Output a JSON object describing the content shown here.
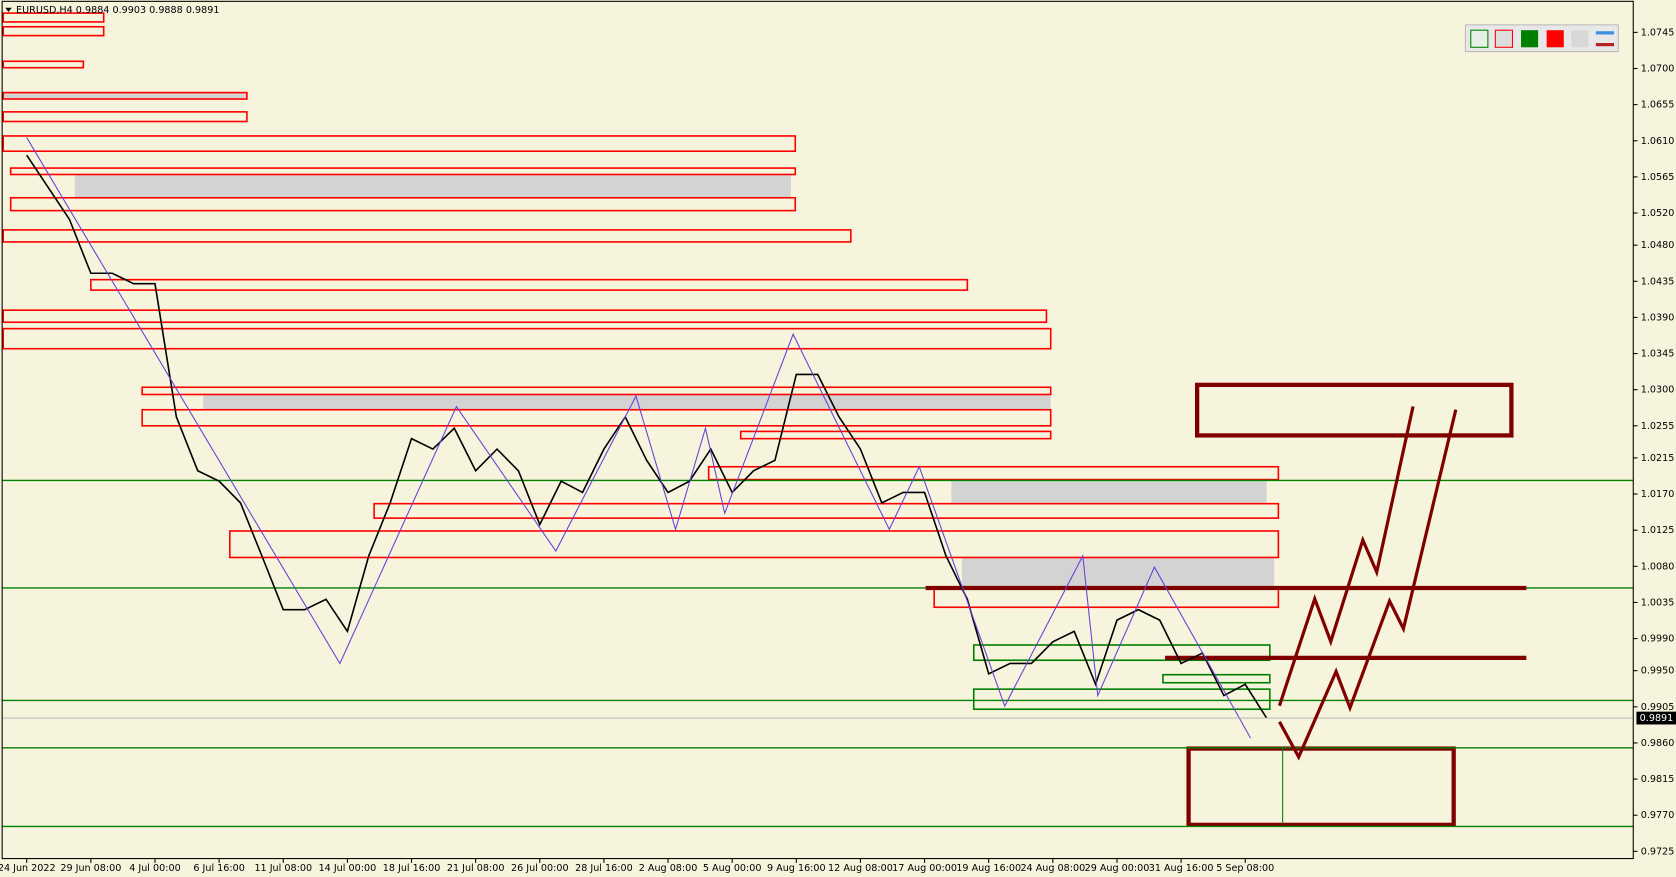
{
  "header": "EURUSD,H4  0.9884 0.9903 0.9888 0.9891",
  "chart_data": {
    "type": "line",
    "categories": [
      "24 Jun 2022",
      null,
      null,
      "29 Jun 08:00",
      null,
      null,
      "4 Jul 00:00",
      null,
      null,
      "6 Jul 16:00",
      null,
      null,
      "11 Jul 08:00",
      null,
      null,
      "14 Jul 00:00",
      null,
      null,
      "18 Jul 16:00",
      null,
      null,
      "21 Jul 08:00",
      null,
      null,
      "26 Jul 00:00",
      null,
      null,
      "28 Jul 16:00",
      null,
      null,
      "2 Aug 08:00",
      null,
      null,
      "5 Aug 00:00",
      null,
      null,
      "9 Aug 16:00",
      null,
      null,
      "12 Aug 08:00",
      null,
      null,
      "17 Aug 00:00",
      null,
      null,
      "19 Aug 16:00",
      null,
      null,
      "24 Aug 08:00",
      null,
      null,
      "29 Aug 00:00",
      null,
      null,
      "31 Aug 16:00",
      null,
      null,
      "5 Sep 08:00",
      null
    ],
    "values": [
      1.0592,
      1.0552,
      1.0512,
      1.0445,
      1.0445,
      1.0432,
      1.0432,
      1.0266,
      1.0199,
      1.0186,
      1.0159,
      1.0093,
      1.0026,
      1.0026,
      1.0039,
      0.9999,
      1.0093,
      1.0159,
      1.0239,
      1.0226,
      1.0252,
      1.0199,
      1.0226,
      1.0199,
      1.0132,
      1.0186,
      1.0172,
      1.0226,
      1.0266,
      1.0212,
      1.0172,
      1.0186,
      1.0226,
      1.0172,
      1.0199,
      1.0212,
      1.0319,
      1.0319,
      1.0266,
      1.0226,
      1.0159,
      1.0172,
      1.0172,
      1.0093,
      1.0039,
      0.9946,
      0.9959,
      0.9959,
      0.9986,
      0.9999,
      0.9933,
      1.0013,
      1.0026,
      1.0013,
      0.9959,
      0.9972,
      0.9919,
      0.9933,
      0.9891
    ],
    "color": "#000000",
    "zigzag": {
      "color": "#6a3fd8",
      "x": [
        0,
        14.65,
        20.1,
        24.75,
        28.5,
        30.35,
        31.75,
        32.65,
        35.85,
        40.35,
        41.75,
        45.75,
        49.4,
        50.1,
        52.75,
        57.25
      ],
      "values": [
        1.0614,
        0.9959,
        1.0279,
        1.0099,
        1.0292,
        1.0126,
        1.0252,
        1.0146,
        1.0369,
        1.0126,
        1.0204,
        0.9906,
        1.0093,
        0.9919,
        1.0079,
        0.9866
      ]
    },
    "ylim": [
      0.9716,
      1.0785
    ],
    "yticks": [
      {
        "value": 1.0745,
        "label": "1.0745"
      },
      {
        "value": 1.07,
        "label": "1.0700"
      },
      {
        "value": 1.0655,
        "label": "1.0655"
      },
      {
        "value": 1.061,
        "label": "1.0610"
      },
      {
        "value": 1.0565,
        "label": "1.0565"
      },
      {
        "value": 1.052,
        "label": "1.0520"
      },
      {
        "value": 1.048,
        "label": "1.0480"
      },
      {
        "value": 1.0435,
        "label": "1.0435"
      },
      {
        "value": 1.039,
        "label": "1.0390"
      },
      {
        "value": 1.0345,
        "label": "1.0345"
      },
      {
        "value": 1.03,
        "label": "1.0300"
      },
      {
        "value": 1.0255,
        "label": "1.0255"
      },
      {
        "value": 1.0215,
        "label": "1.0215"
      },
      {
        "value": 1.017,
        "label": "1.0170"
      },
      {
        "value": 1.0125,
        "label": "1.0125"
      },
      {
        "value": 1.008,
        "label": "1.0080"
      },
      {
        "value": 1.0035,
        "label": "1.0035"
      },
      {
        "value": 0.999,
        "label": "0.9990"
      },
      {
        "value": 0.995,
        "label": "0.9950"
      },
      {
        "value": 0.9905,
        "label": "0.9905"
      },
      {
        "value": 0.986,
        "label": "0.9860"
      },
      {
        "value": 0.9815,
        "label": "0.9815"
      },
      {
        "value": 0.977,
        "label": "0.9770"
      },
      {
        "value": 0.9725,
        "label": "0.9725"
      }
    ],
    "last_price": {
      "value": 0.9891,
      "label": "0.9891"
    },
    "zones": [
      {
        "low": 1.0662,
        "high": 1.067,
        "x": [
          -1.1,
          10.3
        ],
        "color": "#d3d3d3",
        "filled": true
      },
      {
        "low": 1.0539,
        "high": 1.0568,
        "x": [
          2.25,
          35.75
        ],
        "color": "#d3d3d3",
        "filled": true
      },
      {
        "low": 1.0275,
        "high": 1.0294,
        "x": [
          8.25,
          47.9
        ],
        "color": "#d3d3d3",
        "filled": true
      },
      {
        "low": 1.0158,
        "high": 1.0188,
        "x": [
          43.25,
          58
        ],
        "color": "#d3d3d3",
        "filled": true
      },
      {
        "low": 1.0053,
        "high": 1.0091,
        "x": [
          43.75,
          58.35
        ],
        "color": "#d3d3d3",
        "filled": true
      },
      {
        "low": 1.0758,
        "high": 1.0769,
        "x": [
          -1.1,
          3.6
        ],
        "color": "#ff0000"
      },
      {
        "low": 1.0741,
        "high": 1.0752,
        "x": [
          -1.1,
          3.6
        ],
        "color": "#ff0000"
      },
      {
        "low": 1.0701,
        "high": 1.0709,
        "x": [
          -1.1,
          2.65
        ],
        "color": "#ff0000"
      },
      {
        "low": 1.0662,
        "high": 1.067,
        "x": [
          -1.1,
          10.3
        ],
        "color": "#ff0000"
      },
      {
        "low": 1.0634,
        "high": 1.0646,
        "x": [
          -1.1,
          10.3
        ],
        "color": "#ff0000"
      },
      {
        "low": 1.0597,
        "high": 1.0616,
        "x": [
          -1.1,
          35.95
        ],
        "color": "#ff0000"
      },
      {
        "low": 1.0568,
        "high": 1.0576,
        "x": [
          -0.75,
          35.95
        ],
        "color": "#ff0000"
      },
      {
        "low": 1.0523,
        "high": 1.0539,
        "x": [
          -0.75,
          35.95
        ],
        "color": "#ff0000"
      },
      {
        "low": 1.0484,
        "high": 1.0499,
        "x": [
          -1.1,
          38.55
        ],
        "color": "#ff0000"
      },
      {
        "low": 1.0424,
        "high": 1.0437,
        "x": [
          3,
          44
        ],
        "color": "#ff0000"
      },
      {
        "low": 1.0384,
        "high": 1.0399,
        "x": [
          -1.1,
          47.7
        ],
        "color": "#ff0000"
      },
      {
        "low": 1.0351,
        "high": 1.0376,
        "x": [
          -1.1,
          47.9
        ],
        "color": "#ff0000"
      },
      {
        "low": 1.0294,
        "high": 1.0303,
        "x": [
          5.4,
          47.9
        ],
        "color": "#ff0000"
      },
      {
        "low": 1.0255,
        "high": 1.0275,
        "x": [
          5.4,
          47.9
        ],
        "color": "#ff0000"
      },
      {
        "low": 1.0239,
        "high": 1.0248,
        "x": [
          33.4,
          47.9
        ],
        "color": "#ff0000"
      },
      {
        "low": 1.0188,
        "high": 1.0204,
        "x": [
          31.9,
          58.55
        ],
        "color": "#ff0000"
      },
      {
        "low": 1.014,
        "high": 1.0158,
        "x": [
          16.25,
          58.55
        ],
        "color": "#ff0000"
      },
      {
        "low": 1.0091,
        "high": 1.0124,
        "x": [
          9.5,
          58.55
        ],
        "color": "#ff0000"
      },
      {
        "low": 1.0029,
        "high": 1.0053,
        "x": [
          42.45,
          58.55
        ],
        "color": "#ff0000"
      },
      {
        "low": 0.9963,
        "high": 0.9982,
        "x": [
          44.3,
          58.15
        ],
        "color": "#008000"
      },
      {
        "low": 0.9935,
        "high": 0.9945,
        "x": [
          53.15,
          58.15
        ],
        "color": "#008000"
      },
      {
        "low": 0.9902,
        "high": 0.9927,
        "x": [
          44.3,
          58.15
        ],
        "color": "#008000"
      },
      {
        "low": 1.0243,
        "high": 1.0306,
        "x": [
          54.75,
          69.45
        ],
        "color": "#800000",
        "thick": true
      },
      {
        "low": 0.9758,
        "high": 0.9853,
        "x": [
          54.35,
          66.75
        ],
        "color": "#800000",
        "thick": true
      }
    ],
    "levels": [
      {
        "value": 1.0187,
        "color": "#008000"
      },
      {
        "value": 1.0053,
        "color": "#008000"
      },
      {
        "value": 0.9913,
        "color": "#008000"
      },
      {
        "value": 0.9854,
        "color": "#008000"
      },
      {
        "value": 0.9756,
        "color": "#008000"
      },
      {
        "value": 1.0053,
        "color": "#800000",
        "x": [
          42.05,
          70.15
        ]
      },
      {
        "value": 0.9966,
        "color": "#800000",
        "x": [
          53.25,
          70.15
        ]
      }
    ]
  }
}
